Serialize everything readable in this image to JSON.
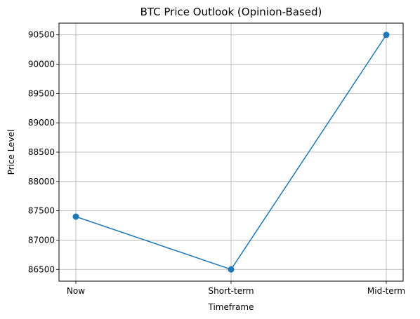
{
  "chart_data": {
    "type": "line",
    "title": "BTC Price Outlook (Opinion-Based)",
    "xlabel": "Timeframe",
    "ylabel": "Price Level",
    "categories": [
      "Now",
      "Short-term",
      "Mid-term"
    ],
    "series": [
      {
        "values": [
          87400,
          86500,
          90500
        ]
      }
    ],
    "y_ticks": [
      86500,
      87000,
      87500,
      88000,
      88500,
      89000,
      89500,
      90000,
      90500
    ],
    "ylim": [
      86300,
      90700
    ],
    "grid": true,
    "marker": "circle",
    "colors": {
      "line": "#1f77b4",
      "grid": "#b0b0b0",
      "axes": "#000000"
    }
  }
}
